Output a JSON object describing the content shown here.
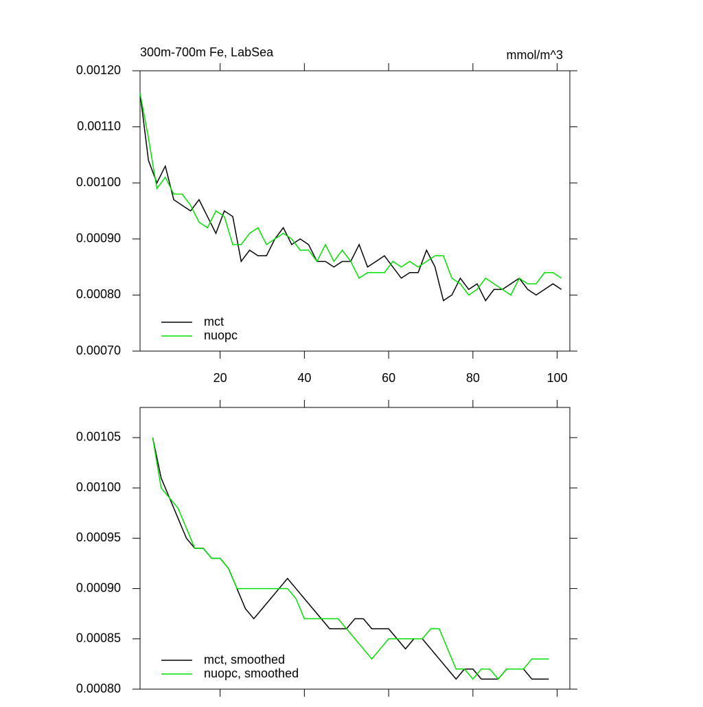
{
  "chart_data": [
    {
      "type": "line",
      "subtitle_left": "300m-700m Fe, LabSea",
      "subtitle_right": "mmol/m^3",
      "x": [
        1,
        3,
        5,
        7,
        9,
        11,
        13,
        15,
        17,
        19,
        21,
        23,
        25,
        27,
        29,
        31,
        33,
        35,
        37,
        39,
        41,
        43,
        45,
        47,
        49,
        51,
        53,
        55,
        57,
        59,
        61,
        63,
        65,
        67,
        69,
        71,
        73,
        75,
        77,
        79,
        81,
        83,
        85,
        87,
        89,
        91,
        93,
        95,
        97,
        99,
        101
      ],
      "series": [
        {
          "name": "mct",
          "color": "#000000",
          "values": [
            0.00116,
            0.00104,
            0.001,
            0.00103,
            0.00097,
            0.00096,
            0.00095,
            0.00097,
            0.00094,
            0.00091,
            0.00095,
            0.00094,
            0.00086,
            0.00088,
            0.00087,
            0.00087,
            0.0009,
            0.00092,
            0.00089,
            0.0009,
            0.00089,
            0.00086,
            0.00086,
            0.00085,
            0.00086,
            0.00086,
            0.00089,
            0.00085,
            0.00086,
            0.00087,
            0.00085,
            0.00083,
            0.00084,
            0.00084,
            0.00088,
            0.00085,
            0.00079,
            0.0008,
            0.00083,
            0.00081,
            0.00082,
            0.00079,
            0.00081,
            0.00081,
            0.00082,
            0.00083,
            0.00081,
            0.0008,
            0.00081,
            0.00082,
            0.00081
          ]
        },
        {
          "name": "nuopc",
          "color": "#00e000",
          "values": [
            0.00116,
            0.00108,
            0.00099,
            0.00101,
            0.00098,
            0.00098,
            0.00096,
            0.00093,
            0.00092,
            0.00095,
            0.00094,
            0.00089,
            0.00089,
            0.00091,
            0.00092,
            0.00089,
            0.0009,
            0.00091,
            0.0009,
            0.00088,
            0.00088,
            0.00086,
            0.00089,
            0.00086,
            0.00088,
            0.00086,
            0.00083,
            0.00084,
            0.00084,
            0.00084,
            0.00086,
            0.00085,
            0.00086,
            0.00085,
            0.00086,
            0.00087,
            0.00087,
            0.00083,
            0.00082,
            0.0008,
            0.00081,
            0.00083,
            0.00082,
            0.00081,
            0.0008,
            0.00083,
            0.00082,
            0.00082,
            0.00084,
            0.00084,
            0.00083
          ]
        }
      ],
      "xlim": [
        1,
        103
      ],
      "ylim": [
        0.0007,
        0.0012
      ],
      "xticks": [
        20,
        40,
        60,
        80,
        100
      ],
      "yticks": [
        {
          "value": 0.0007,
          "label": "0.00070"
        },
        {
          "value": 0.0008,
          "label": "0.00080"
        },
        {
          "value": 0.0009,
          "label": "0.00090"
        },
        {
          "value": 0.001,
          "label": "0.00100"
        },
        {
          "value": 0.0011,
          "label": "0.00110"
        },
        {
          "value": 0.0012,
          "label": "0.00120"
        }
      ],
      "legend": "lower left"
    },
    {
      "type": "line",
      "x": [
        4,
        6,
        8,
        10,
        12,
        14,
        16,
        18,
        20,
        22,
        24,
        26,
        28,
        30,
        32,
        34,
        36,
        38,
        40,
        42,
        44,
        46,
        48,
        50,
        52,
        54,
        56,
        58,
        60,
        62,
        64,
        66,
        68,
        70,
        72,
        74,
        76,
        78,
        80,
        82,
        84,
        86,
        88,
        90,
        92,
        94,
        96,
        98
      ],
      "series": [
        {
          "name": "mct, smoothed",
          "color": "#000000",
          "values": [
            0.00105,
            0.00101,
            0.00099,
            0.00097,
            0.00095,
            0.00094,
            0.00094,
            0.00093,
            0.00093,
            0.00092,
            0.0009,
            0.00088,
            0.00087,
            0.00088,
            0.00089,
            0.0009,
            0.00091,
            0.0009,
            0.00089,
            0.00088,
            0.00087,
            0.00086,
            0.00086,
            0.00086,
            0.00087,
            0.00087,
            0.00086,
            0.00086,
            0.00086,
            0.00085,
            0.00084,
            0.00085,
            0.00085,
            0.00084,
            0.00083,
            0.00082,
            0.00081,
            0.00082,
            0.00082,
            0.00081,
            0.00081,
            0.00081,
            0.00082,
            0.00082,
            0.00082,
            0.00081,
            0.00081,
            0.00081
          ]
        },
        {
          "name": "nuopc, smoothed",
          "color": "#00e000",
          "values": [
            0.00105,
            0.001,
            0.00099,
            0.00098,
            0.00096,
            0.00094,
            0.00094,
            0.00093,
            0.00093,
            0.00092,
            0.0009,
            0.0009,
            0.0009,
            0.0009,
            0.0009,
            0.0009,
            0.0009,
            0.00089,
            0.00087,
            0.00087,
            0.00087,
            0.00087,
            0.00087,
            0.00086,
            0.00085,
            0.00084,
            0.00083,
            0.00084,
            0.00085,
            0.00085,
            0.00085,
            0.00085,
            0.00085,
            0.00086,
            0.00086,
            0.00084,
            0.00082,
            0.00082,
            0.00081,
            0.00082,
            0.00082,
            0.00081,
            0.00082,
            0.00082,
            0.00082,
            0.00083,
            0.00083,
            0.00083
          ]
        }
      ],
      "xlim": [
        1,
        103
      ],
      "ylim": [
        0.0008,
        0.00108
      ],
      "xticks": [
        20,
        40,
        60,
        80,
        100
      ],
      "yticks": [
        {
          "value": 0.0008,
          "label": "0.00080"
        },
        {
          "value": 0.00085,
          "label": "0.00085"
        },
        {
          "value": 0.0009,
          "label": "0.00090"
        },
        {
          "value": 0.00095,
          "label": "0.00095"
        },
        {
          "value": 0.001,
          "label": "0.00100"
        },
        {
          "value": 0.00105,
          "label": "0.00105"
        }
      ],
      "legend": "lower left"
    }
  ]
}
